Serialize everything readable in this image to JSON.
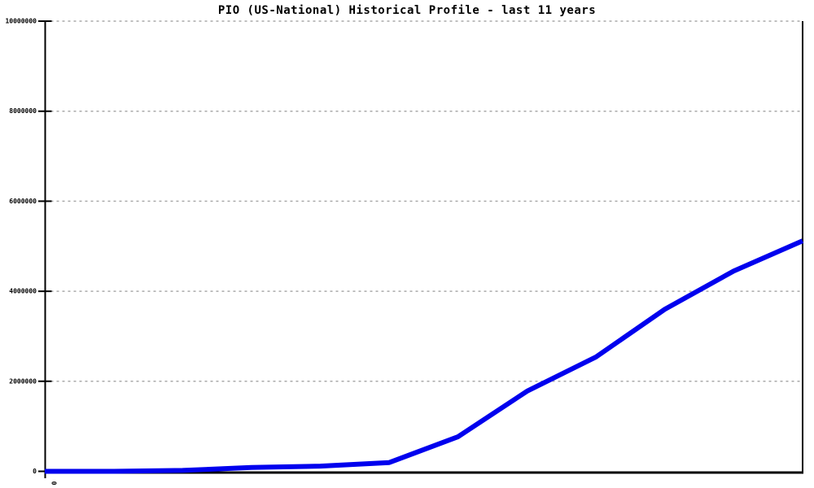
{
  "page": {
    "background_color": "#ffffff"
  },
  "chart_data": {
    "type": "line",
    "title": "PIO (US-National) Historical Profile - last 11 years",
    "xlabel": "",
    "ylabel": "",
    "x": [
      0,
      1,
      2,
      3,
      4,
      5,
      6,
      7,
      8,
      9,
      10,
      11
    ],
    "series": [
      {
        "name": "PIO (US-National)",
        "values": [
          0,
          0,
          20000,
          85000,
          115000,
          195000,
          770000,
          1780000,
          2540000,
          3600000,
          4450000,
          5120000
        ],
        "color": "#0000ee"
      }
    ],
    "ylim": [
      0,
      10000000
    ],
    "y_ticks": [
      {
        "value": 0,
        "label": "0"
      },
      {
        "value": 2000000,
        "label": "2000000"
      },
      {
        "value": 4000000,
        "label": "4000000"
      },
      {
        "value": 6000000,
        "label": "6000000"
      },
      {
        "value": 8000000,
        "label": "8000000"
      },
      {
        "value": 10000000,
        "label": "10000000"
      }
    ],
    "x_first_tick_label": "0",
    "grid": "horizontal-dashed",
    "grid_color": "#a9a9a9",
    "axis_color": "#000000",
    "legend_position": "none"
  }
}
